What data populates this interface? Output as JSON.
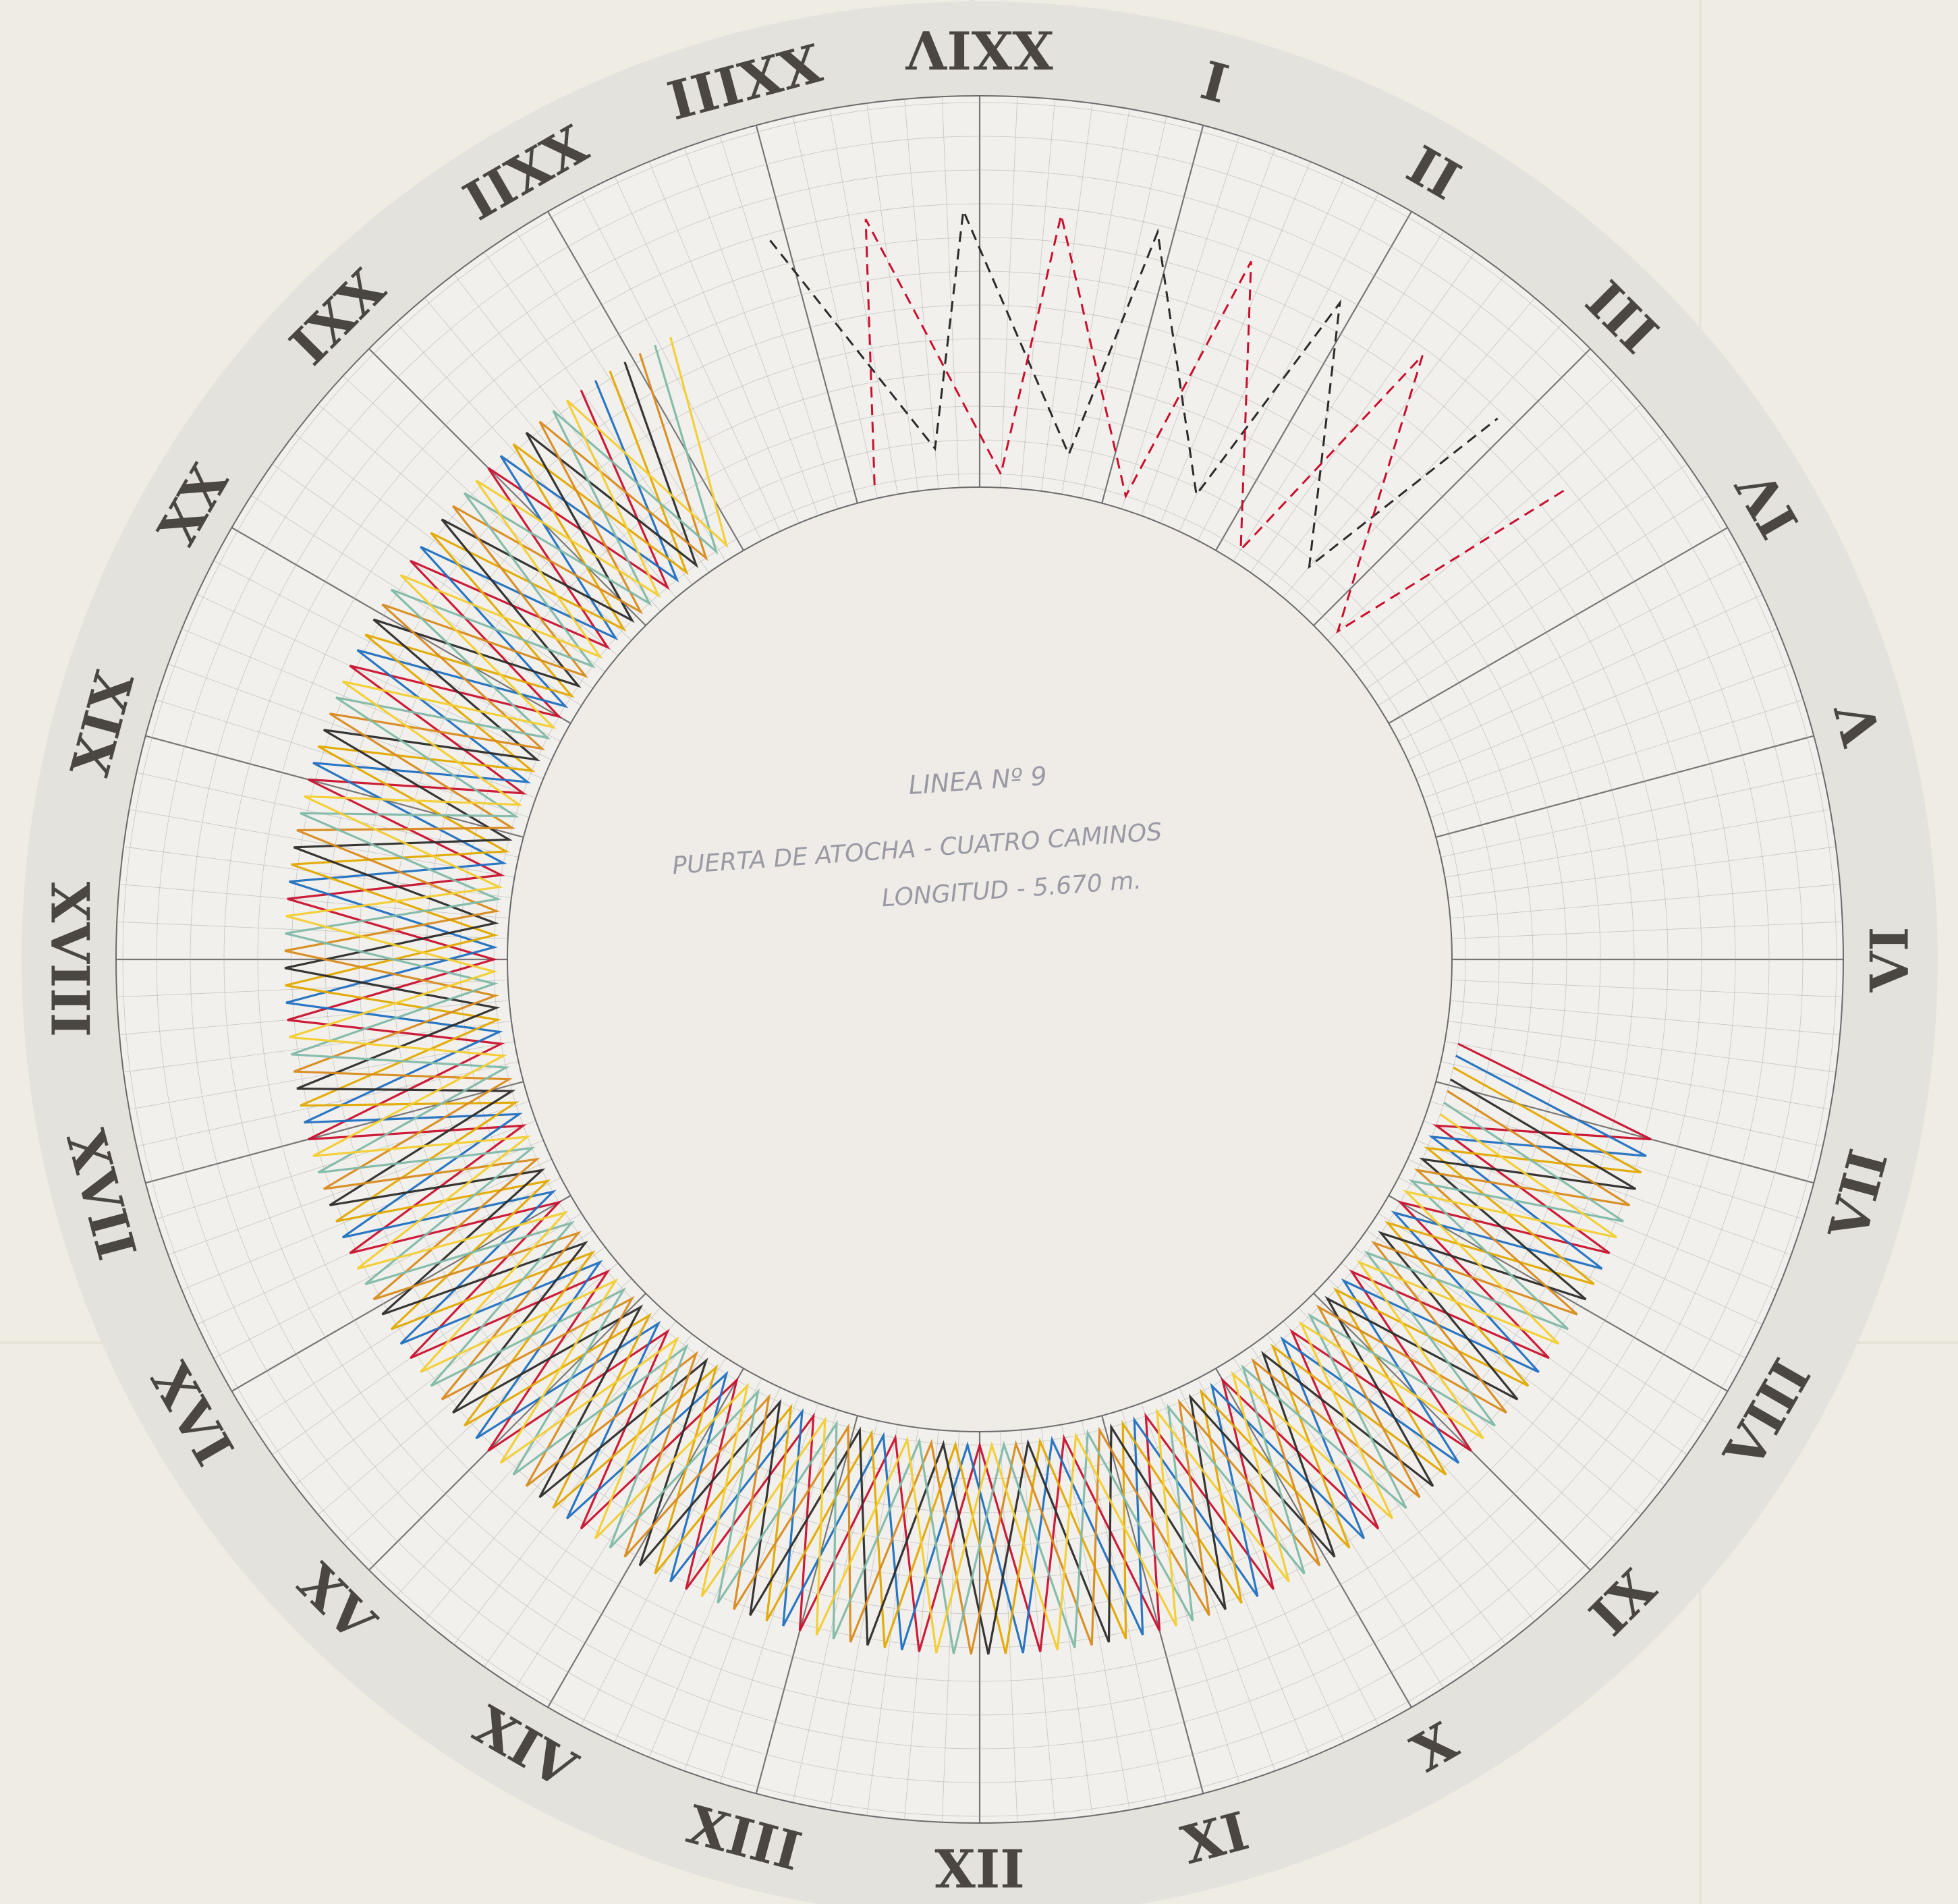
{
  "diagram": {
    "title": "LINEA Nº 9",
    "route": "PUERTA DE ATOCHA - CUATRO CAMINOS",
    "length": "LONGITUD - 5.670 m.",
    "hour_labels": [
      "XXIV",
      "I",
      "II",
      "III",
      "IV",
      "V",
      "VI",
      "VII",
      "VIII",
      "IX",
      "X",
      "XI",
      "XII",
      "XIII",
      "XIV",
      "XV",
      "XVI",
      "XVII",
      "XVIII",
      "XIX",
      "XX",
      "XXI",
      "XXII",
      "XXIII"
    ],
    "series_colors": [
      "#c8102e",
      "#1f6fc0",
      "#e0a800",
      "#2b2b2b",
      "#d78a1e",
      "#7fb8a8",
      "#f2cc30"
    ],
    "dashed_colors": [
      "#2b2b2b",
      "#c8102e"
    ],
    "colors": {
      "paper": "#efece4",
      "disc": "#e4e2dd",
      "inner_paper": "#efece8",
      "grid": "#a8a8a8",
      "hour_line": "#6b6b6b",
      "label": "#4a4642"
    }
  }
}
